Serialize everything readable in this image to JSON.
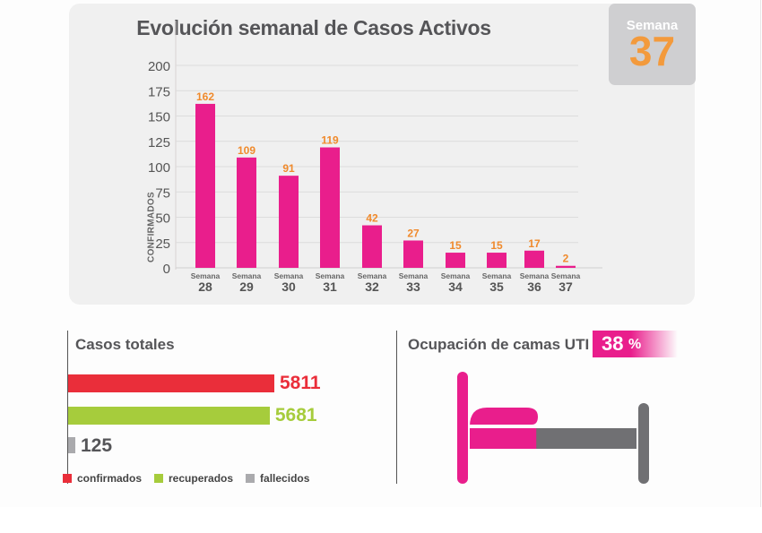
{
  "chart_data": {
    "type": "bar",
    "title": "Evolución semanal de Casos Activos",
    "xlabel": "",
    "ylabel": "CONFIRMADOS",
    "ylim": [
      0,
      200
    ],
    "yticks": [
      0,
      25,
      50,
      75,
      100,
      125,
      150,
      175,
      200
    ],
    "grid": true,
    "category_prefix": "Semana",
    "categories": [
      "28",
      "29",
      "30",
      "31",
      "32",
      "33",
      "34",
      "35",
      "36",
      "37"
    ],
    "values": [
      162,
      109,
      91,
      119,
      42,
      27,
      15,
      15,
      17,
      2
    ],
    "bar_color": "#e91e8c",
    "label_color": "#f08a2c"
  },
  "week_badge": {
    "label": "Semana",
    "number": "37"
  },
  "totals": {
    "title": "Casos totales",
    "items": [
      {
        "key": "confirmados",
        "value": 5811,
        "label": "5811",
        "color": "#ea2e3a"
      },
      {
        "key": "recuperados",
        "value": 5681,
        "label": "5681",
        "color": "#a6cc3c"
      },
      {
        "key": "fallecidos",
        "value": 125,
        "label": "125",
        "color": "#aaaaad"
      }
    ],
    "legend": [
      "confirmados",
      "recuperados",
      "fallecidos"
    ]
  },
  "uti": {
    "title": "Ocupación de camas UTI",
    "percent_value": 38,
    "percent_label": "38",
    "percent_sign": "%",
    "occupied_color": "#e91e8c",
    "free_color": "#707073"
  }
}
